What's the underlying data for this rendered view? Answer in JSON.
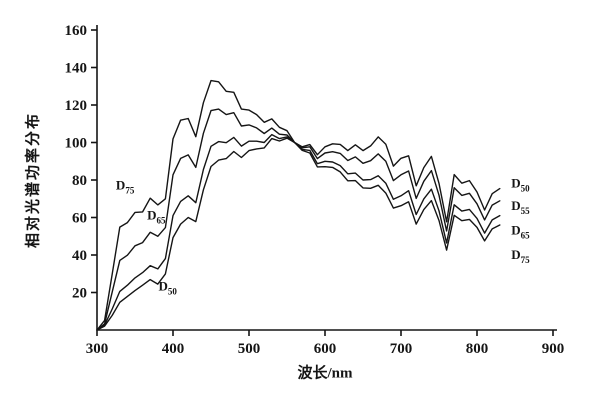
{
  "chart_data": {
    "type": "line",
    "title": "",
    "xlabel": "波长/nm",
    "ylabel": "相对光谱功率分布",
    "xlim": [
      300,
      900
    ],
    "ylim": [
      0,
      160
    ],
    "xticks": [
      300,
      400,
      500,
      600,
      700,
      800,
      900
    ],
    "yticks": [
      20,
      40,
      60,
      80,
      100,
      120,
      140,
      160
    ],
    "grid": false,
    "legend_position": "none",
    "line_color": "#151515",
    "axis_color": "#151515",
    "x": [
      300,
      310,
      320,
      330,
      340,
      350,
      360,
      370,
      380,
      390,
      400,
      410,
      420,
      430,
      440,
      450,
      460,
      470,
      480,
      490,
      500,
      510,
      520,
      530,
      540,
      550,
      560,
      570,
      580,
      590,
      600,
      610,
      620,
      630,
      640,
      650,
      660,
      670,
      680,
      690,
      700,
      710,
      720,
      730,
      740,
      750,
      760,
      770,
      780,
      790,
      800,
      810,
      820,
      830
    ],
    "series": [
      {
        "name": "D75",
        "values": [
          0.0,
          5.1,
          29.8,
          54.9,
          57.3,
          62.7,
          63.0,
          70.3,
          66.7,
          70.0,
          101.9,
          111.9,
          112.8,
          103.1,
          121.2,
          133.0,
          132.4,
          127.3,
          126.8,
          117.8,
          117.3,
          114.9,
          110.8,
          112.6,
          108.1,
          106.3,
          100.0,
          95.8,
          94.4,
          87.0,
          87.1,
          86.7,
          84.3,
          79.6,
          79.7,
          75.8,
          75.6,
          77.2,
          73.0,
          65.0,
          66.3,
          68.4,
          56.5,
          64.2,
          69.0,
          58.4,
          42.6,
          61.2,
          58.3,
          59.0,
          54.7,
          47.5,
          53.9,
          56.0
        ]
      },
      {
        "name": "D65",
        "values": [
          0.0,
          3.3,
          20.2,
          37.1,
          39.9,
          44.9,
          46.6,
          52.1,
          50.0,
          54.6,
          82.8,
          91.5,
          93.4,
          86.7,
          104.9,
          117.0,
          117.8,
          114.9,
          115.9,
          108.8,
          109.4,
          107.8,
          104.8,
          107.7,
          104.4,
          104.0,
          100.0,
          96.3,
          95.8,
          88.7,
          90.0,
          89.6,
          87.7,
          83.3,
          83.7,
          80.0,
          80.2,
          82.3,
          78.3,
          69.7,
          71.6,
          74.3,
          61.6,
          69.9,
          75.1,
          63.6,
          46.4,
          66.8,
          63.4,
          64.3,
          59.5,
          51.7,
          58.7,
          61.0
        ]
      },
      {
        "name": "D55",
        "values": [
          0.0,
          2.6,
          11.2,
          20.6,
          23.9,
          27.8,
          30.6,
          34.3,
          32.6,
          38.1,
          61.0,
          68.6,
          71.6,
          67.9,
          85.6,
          98.0,
          100.5,
          99.9,
          102.7,
          98.1,
          100.7,
          100.7,
          100.0,
          104.2,
          102.1,
          103.0,
          100.0,
          97.2,
          97.7,
          91.4,
          94.4,
          95.1,
          94.2,
          90.4,
          92.3,
          88.9,
          90.3,
          93.9,
          90.0,
          79.7,
          82.8,
          84.8,
          70.2,
          79.3,
          85.0,
          71.9,
          52.8,
          75.9,
          71.8,
          72.9,
          67.3,
          58.7,
          66.6,
          68.9
        ]
      },
      {
        "name": "D50",
        "values": [
          0.0,
          2.1,
          7.8,
          14.8,
          17.9,
          21.0,
          23.9,
          26.9,
          24.5,
          29.9,
          49.3,
          56.5,
          60.0,
          57.8,
          74.8,
          87.2,
          90.6,
          91.4,
          95.2,
          92.0,
          95.7,
          96.6,
          97.1,
          102.1,
          100.8,
          102.3,
          100.0,
          97.7,
          98.9,
          93.5,
          97.7,
          99.3,
          99.0,
          95.7,
          98.8,
          95.7,
          98.2,
          103.0,
          99.1,
          87.4,
          91.6,
          92.9,
          76.9,
          86.6,
          92.6,
          78.2,
          57.7,
          82.9,
          78.3,
          79.7,
          73.6,
          64.0,
          72.7,
          75.4
        ]
      }
    ],
    "curve_labels": [
      {
        "name": "D75-left",
        "text": "D",
        "sub": "75",
        "x": 337,
        "y": 75,
        "anchor": "middle"
      },
      {
        "name": "D65-left",
        "text": "D",
        "sub": "65",
        "x": 378,
        "y": 59,
        "anchor": "middle"
      },
      {
        "name": "D50-left",
        "text": "D",
        "sub": "50",
        "x": 393,
        "y": 21,
        "anchor": "middle"
      },
      {
        "name": "D50-right",
        "text": "D",
        "sub": "50",
        "x": 845,
        "y": 76,
        "anchor": "start"
      },
      {
        "name": "D55-right",
        "text": "D",
        "sub": "55",
        "x": 845,
        "y": 64,
        "anchor": "start"
      },
      {
        "name": "D65-right",
        "text": "D",
        "sub": "65",
        "x": 845,
        "y": 51,
        "anchor": "start"
      },
      {
        "name": "D75-right",
        "text": "D",
        "sub": "75",
        "x": 845,
        "y": 38,
        "anchor": "start"
      }
    ]
  }
}
